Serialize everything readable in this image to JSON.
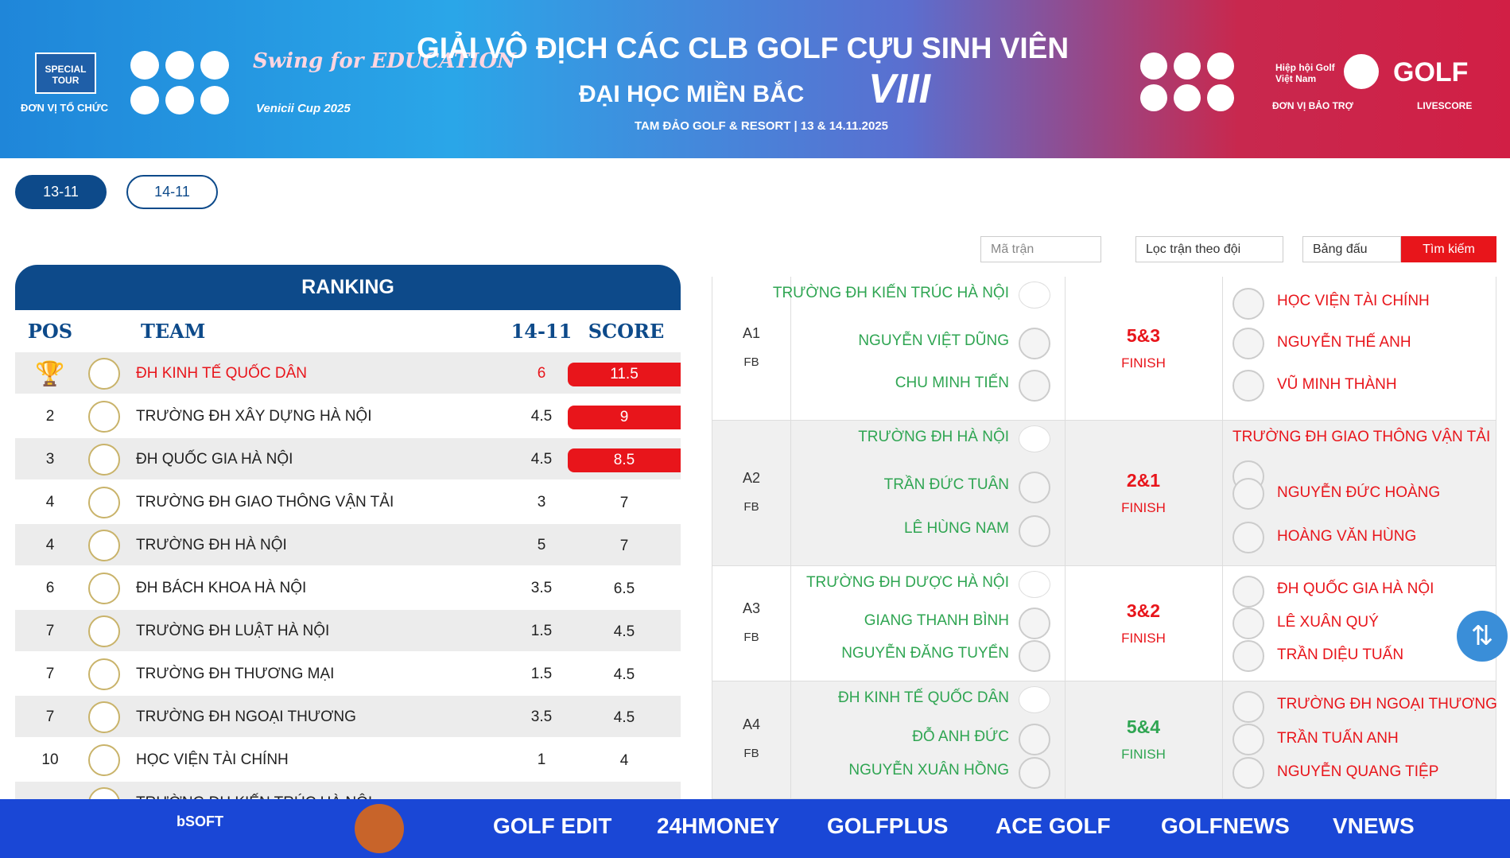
{
  "banner": {
    "organizer_logo": "SPECIAL TOUR",
    "organizer_label": "ĐƠN VỊ TỔ CHỨC",
    "event_logo": "Swing for EDUCATION",
    "event_cup": "Venicii Cup 2025",
    "title": "GIẢI VÔ ĐỊCH CÁC CLB GOLF CỰU SINH VIÊN",
    "subtitle": "ĐẠI HỌC MIỀN BẮC",
    "edition": "VIII",
    "venue": "TAM ĐẢO GOLF & RESORT | 13 & 14.11.2025",
    "patron_name": "Hiệp hội Golf Việt Nam",
    "patron_label": "ĐƠN VỊ BẢO TRỢ",
    "livescore_logo": "GOLF",
    "livescore_label": "LIVESCORE"
  },
  "tabs": [
    "13-11",
    "14-11"
  ],
  "filters": {
    "match_code": "Mã trận",
    "team_filter": "Lọc trận theo đội",
    "group": "Bảng đấu",
    "search": "Tìm kiếm"
  },
  "ranking": {
    "title": "RANKING",
    "columns": [
      "POS",
      "TEAM",
      "14-11",
      "SCORE"
    ],
    "rows": [
      [
        null,
        "ĐH KINH TẾ QUỐC DÂN",
        "6",
        "11.5"
      ],
      [
        "2",
        "TRƯỜNG ĐH XÂY DỰNG HÀ NỘI",
        "4.5",
        "9"
      ],
      [
        "3",
        "ĐH QUỐC GIA HÀ NỘI",
        "4.5",
        "8.5"
      ],
      [
        "4",
        "TRƯỜNG ĐH GIAO THÔNG VẬN TẢI",
        "3",
        "7"
      ],
      [
        "4",
        "TRƯỜNG ĐH HÀ NỘI",
        "5",
        "7"
      ],
      [
        "6",
        "ĐH BÁCH KHOA HÀ NỘI",
        "3.5",
        "6.5"
      ],
      [
        "7",
        "TRƯỜNG ĐH LUẬT HÀ NỘI",
        "1.5",
        "4.5"
      ],
      [
        "7",
        "TRƯỜNG ĐH THƯƠNG MẠI",
        "1.5",
        "4.5"
      ],
      [
        "7",
        "TRƯỜNG ĐH NGOẠI THƯƠNG",
        "3.5",
        "4.5"
      ],
      [
        "10",
        "HỌC VIỆN TÀI CHÍNH",
        "1",
        "4"
      ],
      [
        null,
        "TRƯỜNG ĐH KIẾN TRÚC HÀ NỘI",
        null,
        null
      ]
    ]
  },
  "matches": [
    {
      "code": "A1",
      "format": "FB",
      "left_team": "TRƯỜNG ĐH KIẾN TRÚC HÀ NỘI",
      "left_players": [
        "NGUYỄN VIỆT DŨNG",
        "CHU MINH TIẾN"
      ],
      "result": "5&3",
      "status": "FINISH",
      "right_team": "HỌC VIỆN TÀI CHÍNH",
      "right_players": [
        "NGUYỄN THẾ ANH",
        "VŨ MINH THÀNH"
      ]
    },
    {
      "code": "A2",
      "format": "FB",
      "left_team": "TRƯỜNG ĐH HÀ NỘI",
      "left_players": [
        "TRẦN ĐỨC TUÂN",
        "LÊ HÙNG NAM"
      ],
      "result": "2&1",
      "status": "FINISH",
      "right_team": "TRƯỜNG ĐH GIAO THÔNG VẬN TẢI",
      "right_players": [
        "NGUYỄN ĐỨC HOÀNG",
        "HOÀNG VĂN HÙNG"
      ]
    },
    {
      "code": "A3",
      "format": "FB",
      "left_team": "TRƯỜNG ĐH DƯỢC HÀ NỘI",
      "left_players": [
        "GIANG THANH BÌNH",
        "NGUYỄN ĐĂNG TUYỂN"
      ],
      "result": "3&2",
      "status": "FINISH",
      "right_team": "ĐH QUỐC GIA HÀ NỘI",
      "right_players": [
        "LÊ XUÂN QUÝ",
        "TRẦN DIỆU TUẤN"
      ]
    },
    {
      "code": "A4",
      "format": "FB",
      "left_team": "ĐH KINH TẾ QUỐC DÂN",
      "left_players": [
        "ĐỖ ANH ĐỨC",
        "NGUYỄN XUÂN HỒNG"
      ],
      "result": "5&4",
      "status": "FINISH",
      "right_team": "TRƯỜNG ĐH NGOẠI THƯƠNG",
      "right_players": [
        "TRẦN TUẤN ANH",
        "NGUYỄN QUANG TIỆP"
      ]
    }
  ],
  "sponsors": [
    "bSOFT",
    "GOLF EDIT",
    "24HMONEY",
    "GOLFPLUS",
    "ACE GOLF",
    "GOLFNEWS",
    "VNEWS"
  ]
}
